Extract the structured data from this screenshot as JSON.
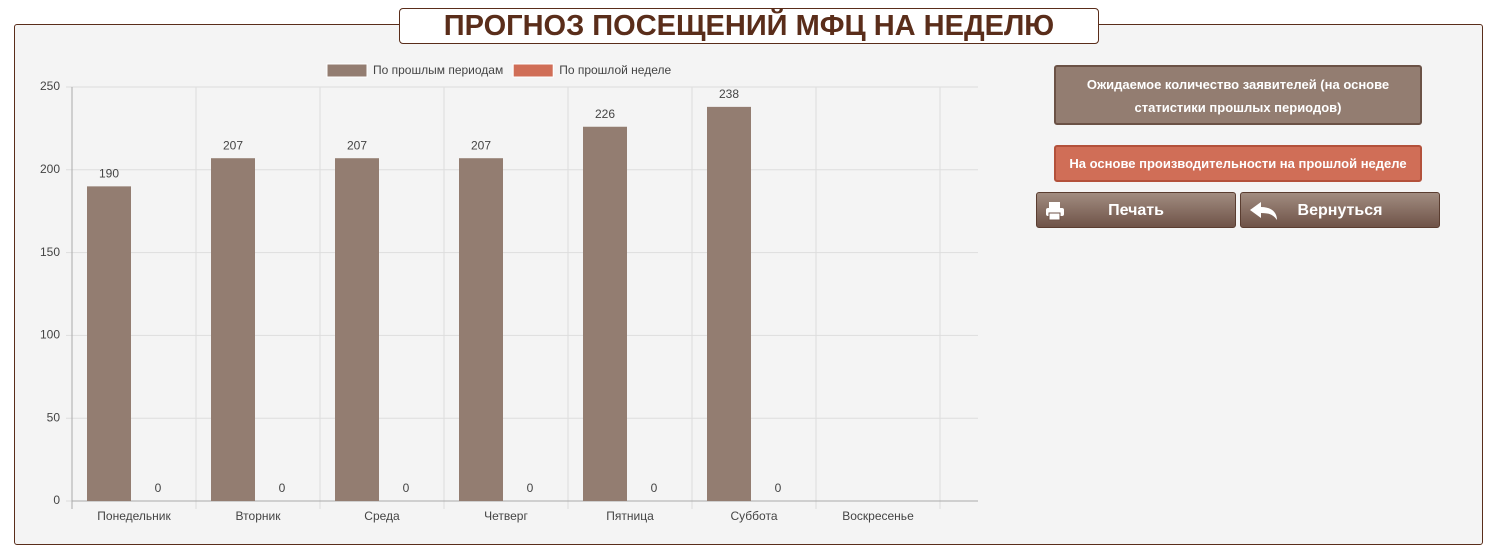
{
  "chart_data": {
    "type": "bar",
    "title": "ПРОГНОЗ ПОСЕЩЕНИЙ МФЦ НА НЕДЕЛЮ",
    "categories": [
      "Понедельник",
      "Вторник",
      "Среда",
      "Четверг",
      "Пятница",
      "Суббота",
      "Воскресенье"
    ],
    "series": [
      {
        "name": "По прошлым периодам",
        "color": "#937d71",
        "values": [
          190,
          207,
          207,
          207,
          226,
          238,
          null
        ]
      },
      {
        "name": "По прошлой неделе",
        "color": "#d06e57",
        "values": [
          0,
          0,
          0,
          0,
          0,
          0,
          null
        ]
      }
    ],
    "ylim": [
      0,
      250
    ],
    "yticks": [
      0,
      50,
      100,
      150,
      200,
      250
    ],
    "grid": true,
    "legend": "top"
  },
  "buttons": {
    "expected": "Ожидаемое количество заявителей (на основе статистики прошлых периодов)",
    "last_week": "На основе производительности на прошлой неделе",
    "print": "Печать",
    "back": "Вернуться"
  }
}
